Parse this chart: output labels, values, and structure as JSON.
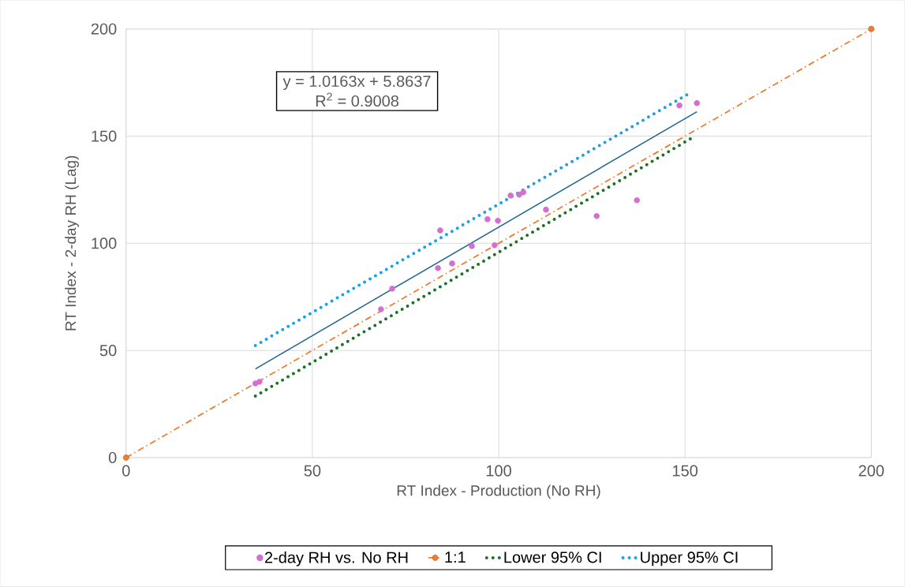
{
  "chart_data": {
    "type": "line",
    "xlabel": "RT Index - Production (No RH)",
    "ylabel": "RT Index - 2-day RH (Lag)",
    "xlim": [
      0,
      200
    ],
    "ylim": [
      0,
      200
    ],
    "xticks": [
      0,
      50,
      100,
      150,
      200
    ],
    "yticks": [
      0,
      50,
      100,
      150,
      200
    ],
    "grid": true,
    "legend": "bottom",
    "annotations": [
      "y = 1.0163x + 5.8637",
      "R$^{2}$ = 0.9008"
    ],
    "series": [
      {
        "name": "2-day RH vs. No RH",
        "type": "scatter",
        "marker": "circle",
        "color": "#d46fd0",
        "x": [
          34.7,
          35.8,
          68.4,
          71.4,
          83.7,
          84.3,
          87.5,
          92.8,
          98.9,
          97.0,
          99.8,
          103.2,
          105.5,
          106.6,
          112.7,
          126.3,
          137.1,
          148.5,
          153.2
        ],
        "values": [
          34.6,
          35.4,
          69.2,
          78.8,
          88.4,
          106,
          90.6,
          98.7,
          99.1,
          111.2,
          110.5,
          122.3,
          122.7,
          123.8,
          115.7,
          112.7,
          120.1,
          164.3,
          165.4
        ]
      },
      {
        "name": "1:1",
        "marker": "circle",
        "line_style": "dashdot",
        "color": "#ed7d31",
        "x": [
          0,
          200
        ],
        "values": [
          0,
          200
        ]
      },
      {
        "name": "Lower 95% CI",
        "marker": "none",
        "line_style": "dotted",
        "color": "#1e7024",
        "x": [
          34.7,
          151.5
        ],
        "values": [
          28.7,
          148.8
        ]
      },
      {
        "name": "Upper 95% CI",
        "marker": "none",
        "line_style": "dotted",
        "color": "#1ba1e2",
        "x": [
          34.7,
          151.7
        ],
        "values": [
          52.3,
          170.5
        ]
      },
      {
        "marker": "none",
        "line_style": "solid",
        "color": "#1f6391",
        "x": [
          34.7,
          153.2
        ],
        "values": [
          41.4,
          161.4
        ]
      }
    ]
  }
}
